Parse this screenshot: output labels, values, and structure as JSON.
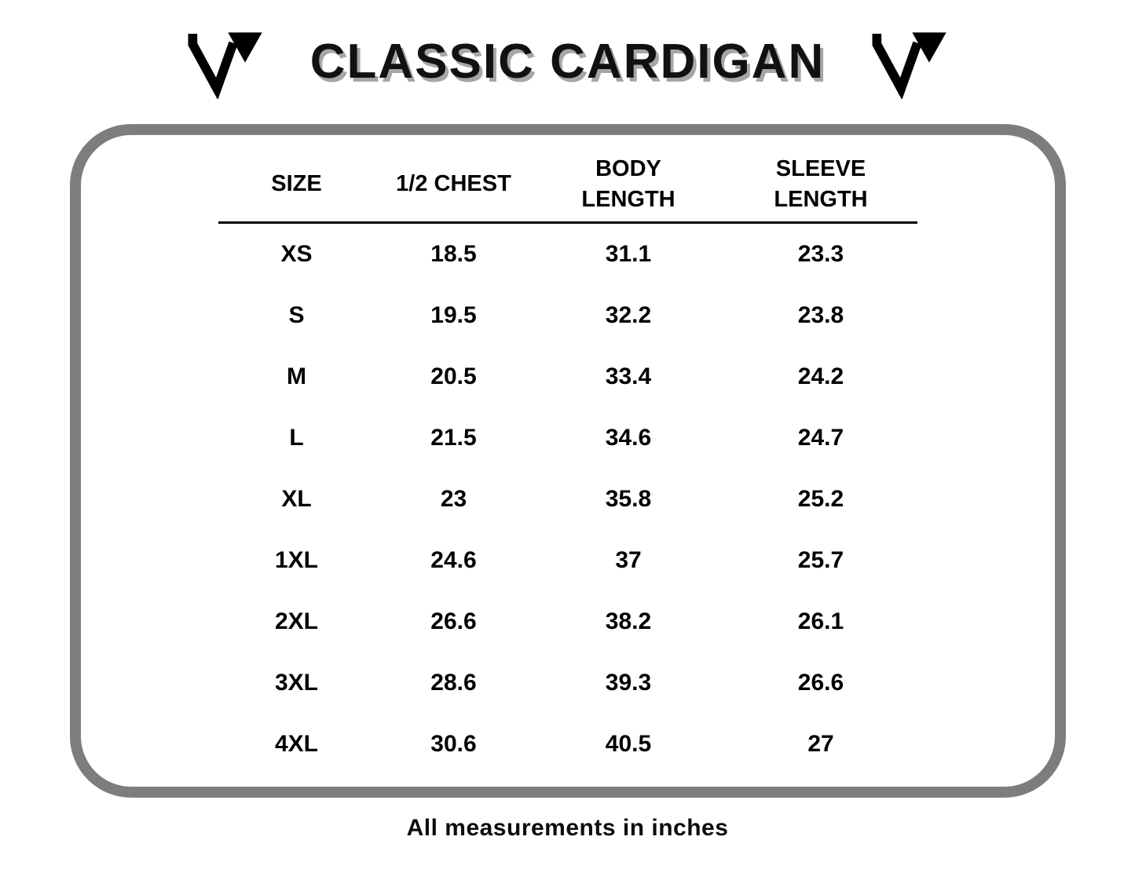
{
  "page": {
    "title": "CLASSIC CARDIGAN",
    "footer_note": "All measurements in inches"
  },
  "icons": {
    "left_logo": "m-brand-logo",
    "right_logo": "m-brand-logo"
  },
  "colors": {
    "title_text": "#111111",
    "title_shadow": "#a6a6a6",
    "panel_border": "#7d7d7d",
    "table_text": "#000000"
  },
  "chart_data": {
    "type": "table",
    "title": "CLASSIC CARDIGAN",
    "columns": [
      "SIZE",
      "1/2 CHEST",
      "BODY LENGTH",
      "SLEEVE LENGTH"
    ],
    "header_lines": [
      [
        "SIZE"
      ],
      [
        "1/2 CHEST"
      ],
      [
        "BODY",
        "LENGTH"
      ],
      [
        "SLEEVE",
        "LENGTH"
      ]
    ],
    "rows": [
      [
        "XS",
        "18.5",
        "31.1",
        "23.3"
      ],
      [
        "S",
        "19.5",
        "32.2",
        "23.8"
      ],
      [
        "M",
        "20.5",
        "33.4",
        "24.2"
      ],
      [
        "L",
        "21.5",
        "34.6",
        "24.7"
      ],
      [
        "XL",
        "23",
        "35.8",
        "25.2"
      ],
      [
        "1XL",
        "24.6",
        "37",
        "25.7"
      ],
      [
        "2XL",
        "26.6",
        "38.2",
        "26.1"
      ],
      [
        "3XL",
        "28.6",
        "39.3",
        "26.6"
      ],
      [
        "4XL",
        "30.6",
        "40.5",
        "27"
      ]
    ],
    "units": "inches",
    "note": "All measurements in inches"
  }
}
